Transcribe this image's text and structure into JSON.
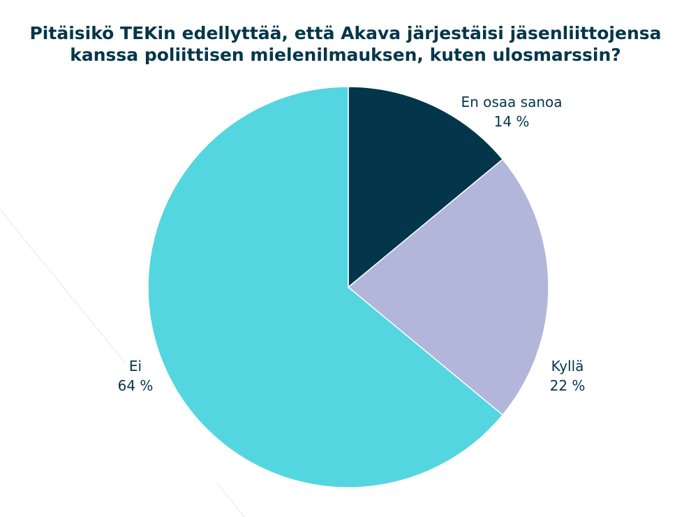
{
  "chart_data": {
    "type": "pie",
    "title_lines": [
      "Pitäisikö TEKin edellyttää, että Akava järjestäisi jäsenliittojensa",
      "kanssa poliittisen mielenilmauksen, kuten ulosmarssin?"
    ],
    "slices": [
      {
        "label": "En osaa sanoa",
        "value": 14,
        "value_label": "14 %",
        "color": "#03364a"
      },
      {
        "label": "Kyllä",
        "value": 22,
        "value_label": "22 %",
        "color": "#b1b6da"
      },
      {
        "label": "Ei",
        "value": 64,
        "value_label": "64 %",
        "color": "#54d6e0"
      }
    ],
    "legend": "none",
    "slice_border_color": "#ffffff"
  }
}
